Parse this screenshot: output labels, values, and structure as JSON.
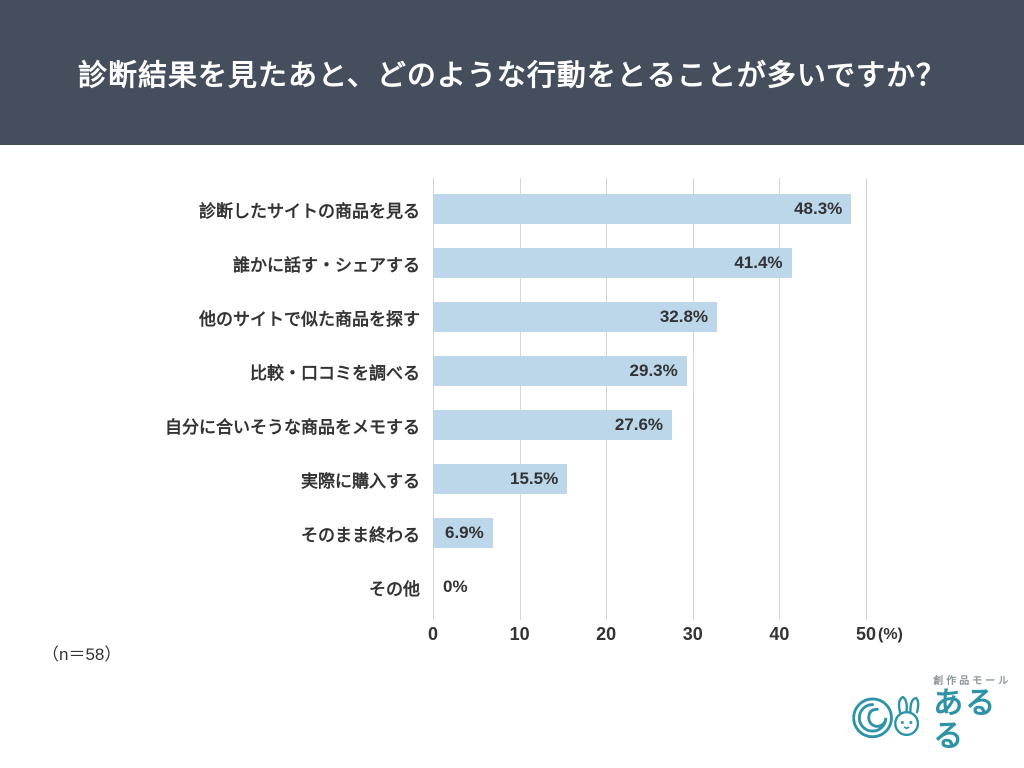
{
  "header": {
    "title": "診断結果を見たあと、どのような行動をとることが多いですか？"
  },
  "chart_data": {
    "type": "bar",
    "orientation": "horizontal",
    "title": "診断結果を見たあと、どのような行動をとることが多いですか？",
    "categories": [
      "診断したサイトの商品を見る",
      "誰かに話す・シェアする",
      "他のサイトで似た商品を探す",
      "比較・口コミを調べる",
      "自分に合いそうな商品をメモする",
      "実際に購入する",
      "そのまま終わる",
      "その他"
    ],
    "values": [
      48.3,
      41.4,
      32.8,
      29.3,
      27.6,
      15.5,
      6.9,
      0
    ],
    "value_labels": [
      "48.3%",
      "41.4%",
      "32.8%",
      "29.3%",
      "27.6%",
      "15.5%",
      "6.9%",
      "0%"
    ],
    "xlim": [
      0,
      50
    ],
    "x_ticks": [
      0,
      10,
      20,
      30,
      40,
      50
    ],
    "x_unit": "(%)",
    "grid": true,
    "legend": "none",
    "bar_color": "#bcd6ea",
    "grid_color": "#d6d6d6"
  },
  "footer": {
    "sample_size": "（n＝58）"
  },
  "logo": {
    "tagline": "創作品モール",
    "name": "あるる",
    "color": "#2d93a6"
  }
}
